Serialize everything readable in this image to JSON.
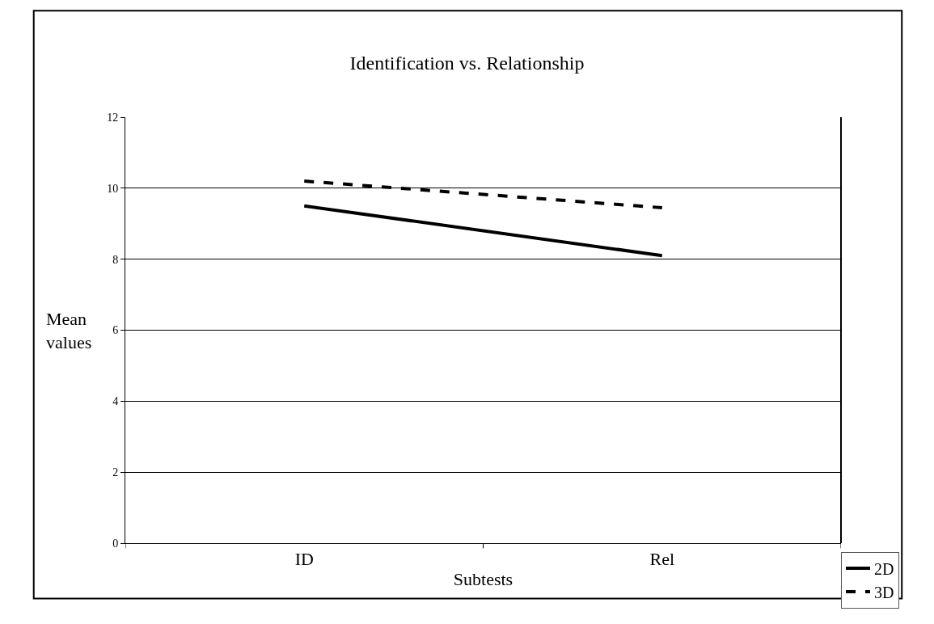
{
  "chart_data": {
    "type": "line",
    "title": "Identification vs. Relationship",
    "xlabel": "Subtests",
    "ylabel": "Mean values",
    "categories": [
      "ID",
      "Rel"
    ],
    "series": [
      {
        "name": "2D",
        "color": "#000000",
        "line_style": "solid",
        "values": [
          9.5,
          8.1
        ]
      },
      {
        "name": "3D",
        "color": "#000000",
        "line_style": "dashed",
        "values": [
          10.2,
          9.45
        ]
      }
    ],
    "ylim": [
      0,
      12
    ],
    "yticks": [
      0,
      2,
      4,
      6,
      8,
      10,
      12
    ],
    "grid": "y",
    "legend": "bottom right",
    "marker": "none"
  }
}
